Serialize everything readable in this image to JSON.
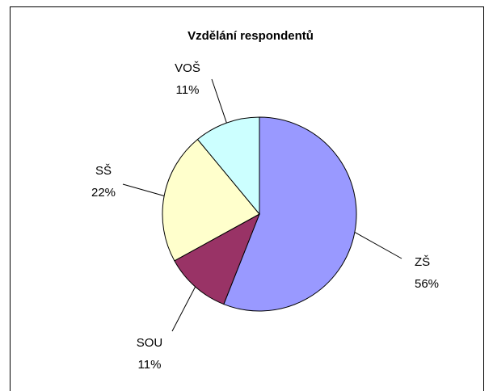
{
  "chart_data": {
    "type": "pie",
    "title": "Vzdělání respondentů",
    "categories": [
      "ZŠ",
      "SOU",
      "SŠ",
      "VOŠ"
    ],
    "values": [
      56,
      11,
      22,
      11
    ],
    "value_labels": [
      "56%",
      "11%",
      "22%",
      "11%"
    ],
    "colors": [
      "#9999ff",
      "#993366",
      "#ffffcc",
      "#ccffff"
    ]
  }
}
